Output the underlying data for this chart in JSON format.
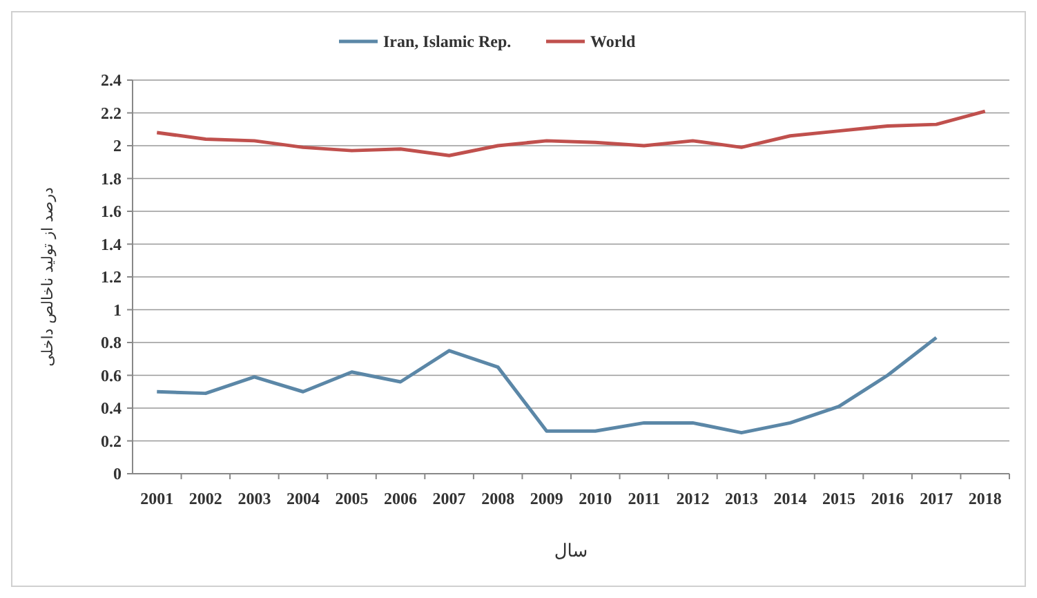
{
  "chart_data": {
    "type": "line",
    "xlabel": "سال",
    "ylabel": "درصد از تولید ناخالص داخلی",
    "categories": [
      "2001",
      "2002",
      "2003",
      "2004",
      "2005",
      "2006",
      "2007",
      "2008",
      "2009",
      "2010",
      "2011",
      "2012",
      "2013",
      "2014",
      "2015",
      "2016",
      "2017",
      "2018"
    ],
    "series": [
      {
        "name": "Iran, Islamic Rep.",
        "color": "#5b87a7",
        "values": [
          0.5,
          0.49,
          0.59,
          0.5,
          0.62,
          0.56,
          0.75,
          0.65,
          0.26,
          0.26,
          0.31,
          0.31,
          0.25,
          0.31,
          0.41,
          0.6,
          0.83,
          null
        ]
      },
      {
        "name": "World",
        "color": "#c0504d",
        "values": [
          2.08,
          2.04,
          2.03,
          1.99,
          1.97,
          1.98,
          1.94,
          2.0,
          2.03,
          2.02,
          2.0,
          2.03,
          1.99,
          2.06,
          2.09,
          2.12,
          2.13,
          2.21
        ]
      }
    ],
    "ylim": [
      0,
      2.4
    ],
    "yticks": [
      0,
      0.2,
      0.4,
      0.6,
      0.8,
      1,
      1.2,
      1.4,
      1.6,
      1.8,
      2,
      2.2,
      2.4
    ],
    "grid": "y",
    "legend": "top",
    "marker": "none",
    "line_style": "solid"
  }
}
